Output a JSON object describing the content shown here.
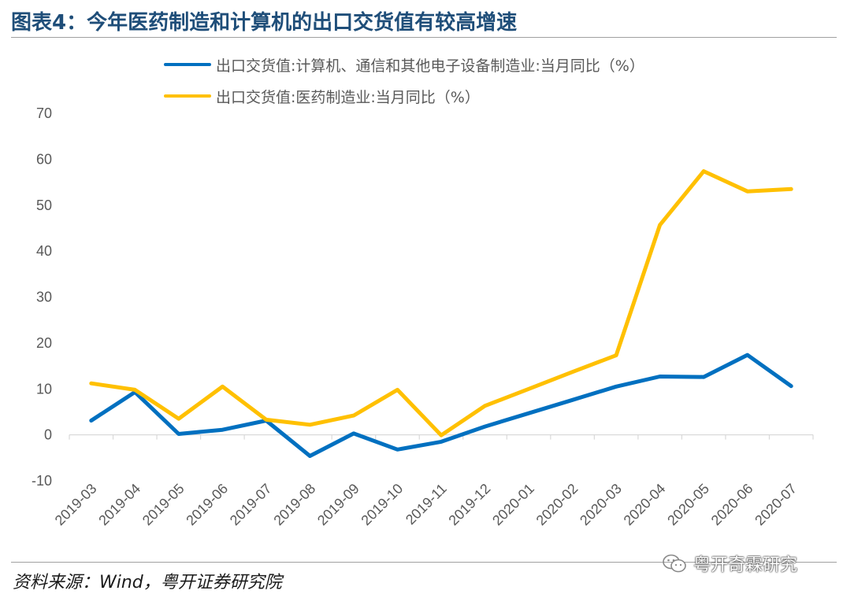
{
  "title": "图表4：今年医药制造和计算机的出口交货值有较高增速",
  "source": "资料来源：Wind，粤开证券研究院",
  "watermark": "粤开奇霖研究",
  "chart_data": {
    "type": "line",
    "categories": [
      "2019-03",
      "2019-04",
      "2019-05",
      "2019-06",
      "2019-07",
      "2019-08",
      "2019-09",
      "2019-10",
      "2019-11",
      "2019-12",
      "2020-01",
      "2020-02",
      "2020-03",
      "2020-04",
      "2020-05",
      "2020-06",
      "2020-07"
    ],
    "series": [
      {
        "name": "出口交货值:计算机、通信和其他电子设备制造业:当月同比（%）",
        "color": "#0070c0",
        "values": [
          3.1,
          9.3,
          0.2,
          1.1,
          3.1,
          -4.6,
          0.3,
          -3.2,
          -1.5,
          1.8,
          4.7,
          7.6,
          10.5,
          12.7,
          12.6,
          17.4,
          10.6
        ]
      },
      {
        "name": "出口交货值:医药制造业:当月同比（%）",
        "color": "#ffc000",
        "values": [
          11.2,
          9.8,
          3.5,
          10.5,
          3.3,
          2.2,
          4.2,
          9.8,
          -0.1,
          6.3,
          10.0,
          13.7,
          17.3,
          45.7,
          57.4,
          53.0,
          53.5
        ]
      }
    ],
    "ylim": [
      -10,
      70
    ],
    "yticks": [
      -10,
      0,
      10,
      20,
      30,
      40,
      50,
      60,
      70
    ],
    "xlabel": "",
    "ylabel": "",
    "legend_position": "top",
    "grid": false
  }
}
